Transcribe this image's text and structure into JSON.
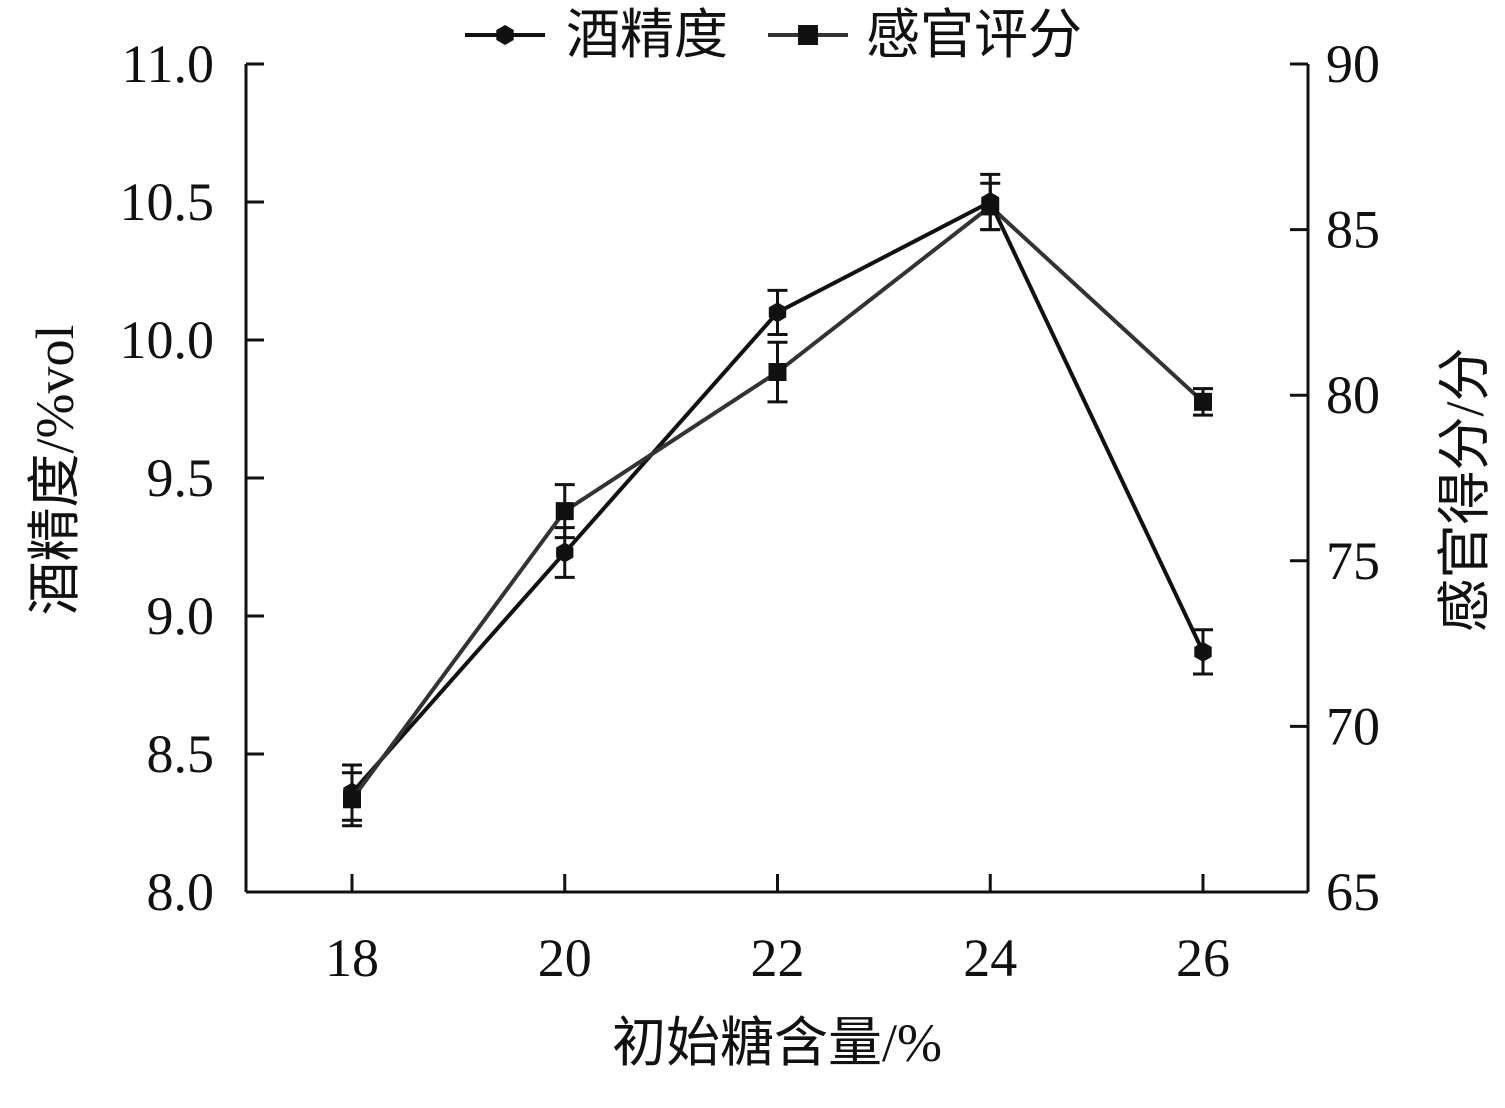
{
  "chart_data": {
    "type": "line",
    "xlabel": "初始糖含量/%",
    "ylabel_left": "酒精度/%vol",
    "ylabel_right": "感官得分/分",
    "categories": [
      "18",
      "20",
      "22",
      "24",
      "26"
    ],
    "x": [
      18,
      20,
      22,
      24,
      26
    ],
    "y_left": {
      "lim": [
        8.0,
        11.0
      ],
      "ticks": [
        "8.0",
        "8.5",
        "9.0",
        "9.5",
        "10.0",
        "10.5",
        "11.0"
      ],
      "tick_values": [
        8.0,
        8.5,
        9.0,
        9.5,
        10.0,
        10.5,
        11.0
      ]
    },
    "y_right": {
      "lim": [
        65,
        90
      ],
      "ticks": [
        "65",
        "70",
        "75",
        "80",
        "85",
        "90"
      ],
      "tick_values": [
        65,
        70,
        75,
        80,
        85,
        90
      ]
    },
    "grid": false,
    "legend_position": "top-center",
    "series": [
      {
        "name": "酒精度",
        "axis": "left",
        "marker": "circle",
        "color": "#111111",
        "values": [
          8.36,
          9.23,
          10.1,
          10.5,
          8.87
        ],
        "errors": [
          0.1,
          0.09,
          0.08,
          0.1,
          0.08
        ]
      },
      {
        "name": "感官评分",
        "axis": "right",
        "marker": "square",
        "color": "#333333",
        "values": [
          67.8,
          76.5,
          80.7,
          85.7,
          79.8
        ],
        "errors": [
          0.8,
          0.8,
          0.9,
          0.7,
          0.4
        ]
      }
    ]
  }
}
